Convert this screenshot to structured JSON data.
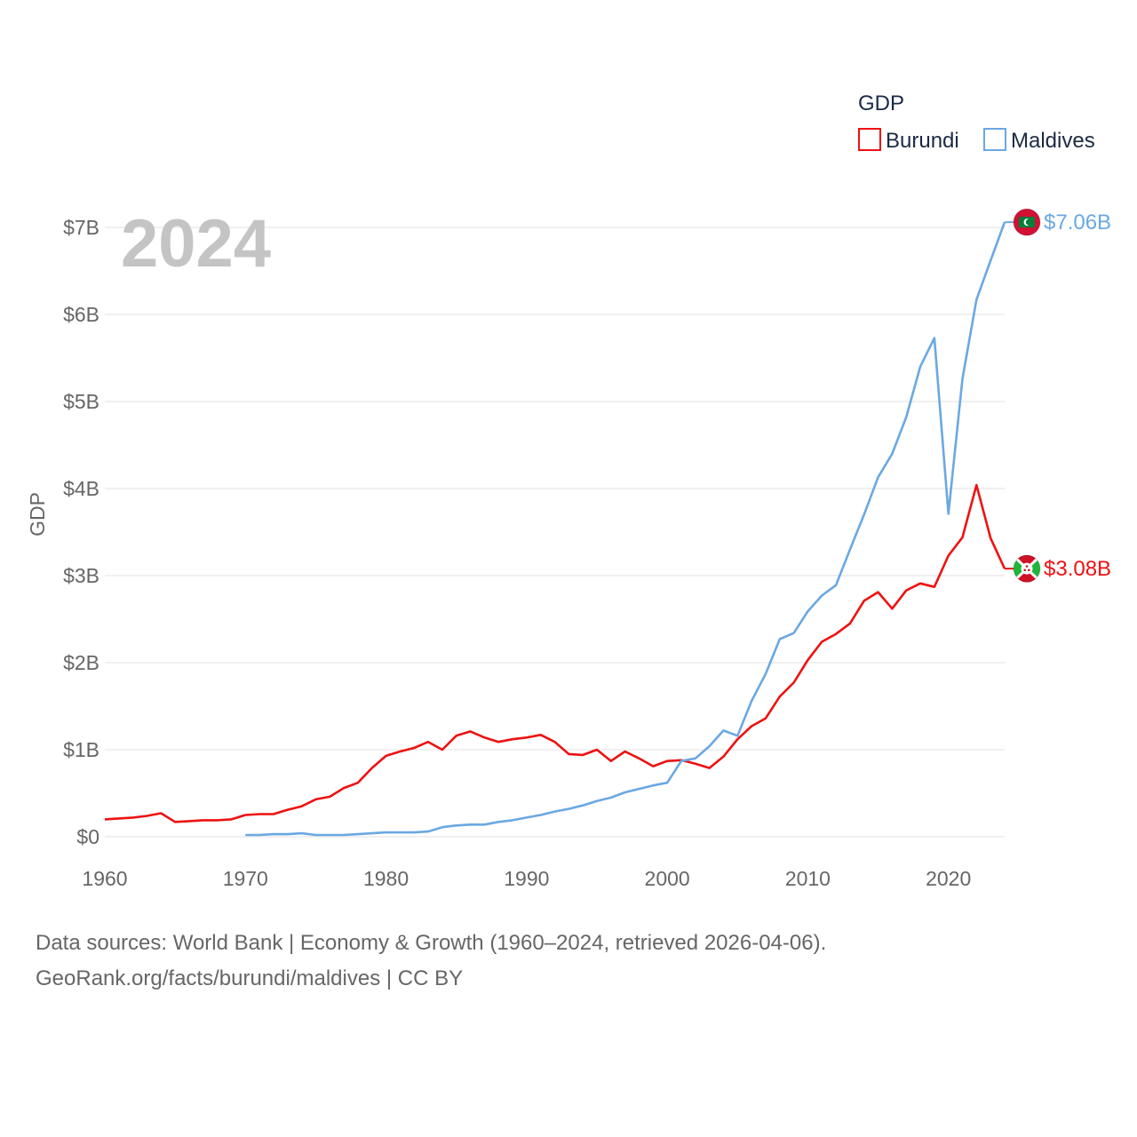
{
  "chart_data": {
    "type": "line",
    "title": "",
    "year_label": "2024",
    "ylabel": "GDP",
    "xlabel": "",
    "xlim": [
      1960,
      2024
    ],
    "ylim": [
      0,
      7
    ],
    "x_ticks": [
      1960,
      1970,
      1980,
      1990,
      2000,
      2010,
      2020
    ],
    "x_tick_labels": [
      "1960",
      "1970",
      "1980",
      "1990",
      "2000",
      "2010",
      "2020"
    ],
    "y_ticks": [
      0,
      1,
      2,
      3,
      4,
      5,
      6,
      7
    ],
    "y_tick_labels": [
      "$0",
      "$1B",
      "$2B",
      "$3B",
      "$4B",
      "$5B",
      "$6B",
      "$7B"
    ],
    "grid": true,
    "legend": {
      "title": "GDP",
      "position": "top-right",
      "entries": [
        "Burundi",
        "Maldives"
      ]
    },
    "units": "billions of US dollars",
    "series": [
      {
        "name": "Burundi",
        "color": "#ee1111",
        "end_label": "$3.08B",
        "flag_icon": "burundi-flag-icon",
        "start_year": 1960,
        "values": [
          0.2,
          0.21,
          0.22,
          0.24,
          0.27,
          0.17,
          0.18,
          0.19,
          0.19,
          0.2,
          0.25,
          0.26,
          0.26,
          0.31,
          0.35,
          0.43,
          0.46,
          0.56,
          0.62,
          0.79,
          0.93,
          0.98,
          1.02,
          1.09,
          1.0,
          1.16,
          1.21,
          1.14,
          1.09,
          1.12,
          1.14,
          1.17,
          1.09,
          0.95,
          0.94,
          1.0,
          0.87,
          0.98,
          0.9,
          0.81,
          0.87,
          0.88,
          0.84,
          0.79,
          0.92,
          1.12,
          1.27,
          1.36,
          1.61,
          1.77,
          2.03,
          2.24,
          2.33,
          2.45,
          2.71,
          2.81,
          2.62,
          2.83,
          2.91,
          2.87,
          3.23,
          3.44,
          4.04,
          3.43,
          3.08
        ]
      },
      {
        "name": "Maldives",
        "color": "#6aa8e3",
        "end_label": "$7.06B",
        "flag_icon": "maldives-flag-icon",
        "start_year": 1970,
        "values": [
          0.02,
          0.02,
          0.03,
          0.03,
          0.04,
          0.02,
          0.02,
          0.02,
          0.03,
          0.04,
          0.05,
          0.05,
          0.05,
          0.06,
          0.11,
          0.13,
          0.14,
          0.14,
          0.17,
          0.19,
          0.22,
          0.25,
          0.29,
          0.32,
          0.36,
          0.41,
          0.45,
          0.51,
          0.55,
          0.59,
          0.62,
          0.87,
          0.9,
          1.04,
          1.22,
          1.16,
          1.56,
          1.87,
          2.27,
          2.34,
          2.59,
          2.77,
          2.89,
          3.3,
          3.7,
          4.13,
          4.4,
          4.82,
          5.4,
          5.73,
          3.71,
          5.26,
          6.17,
          6.62,
          7.06
        ]
      }
    ]
  },
  "source": {
    "line1": "Data sources: World Bank | Economy & Growth (1960–2024, retrieved 2026-04-06).",
    "line2": "GeoRank.org/facts/burundi/maldives | CC BY"
  }
}
